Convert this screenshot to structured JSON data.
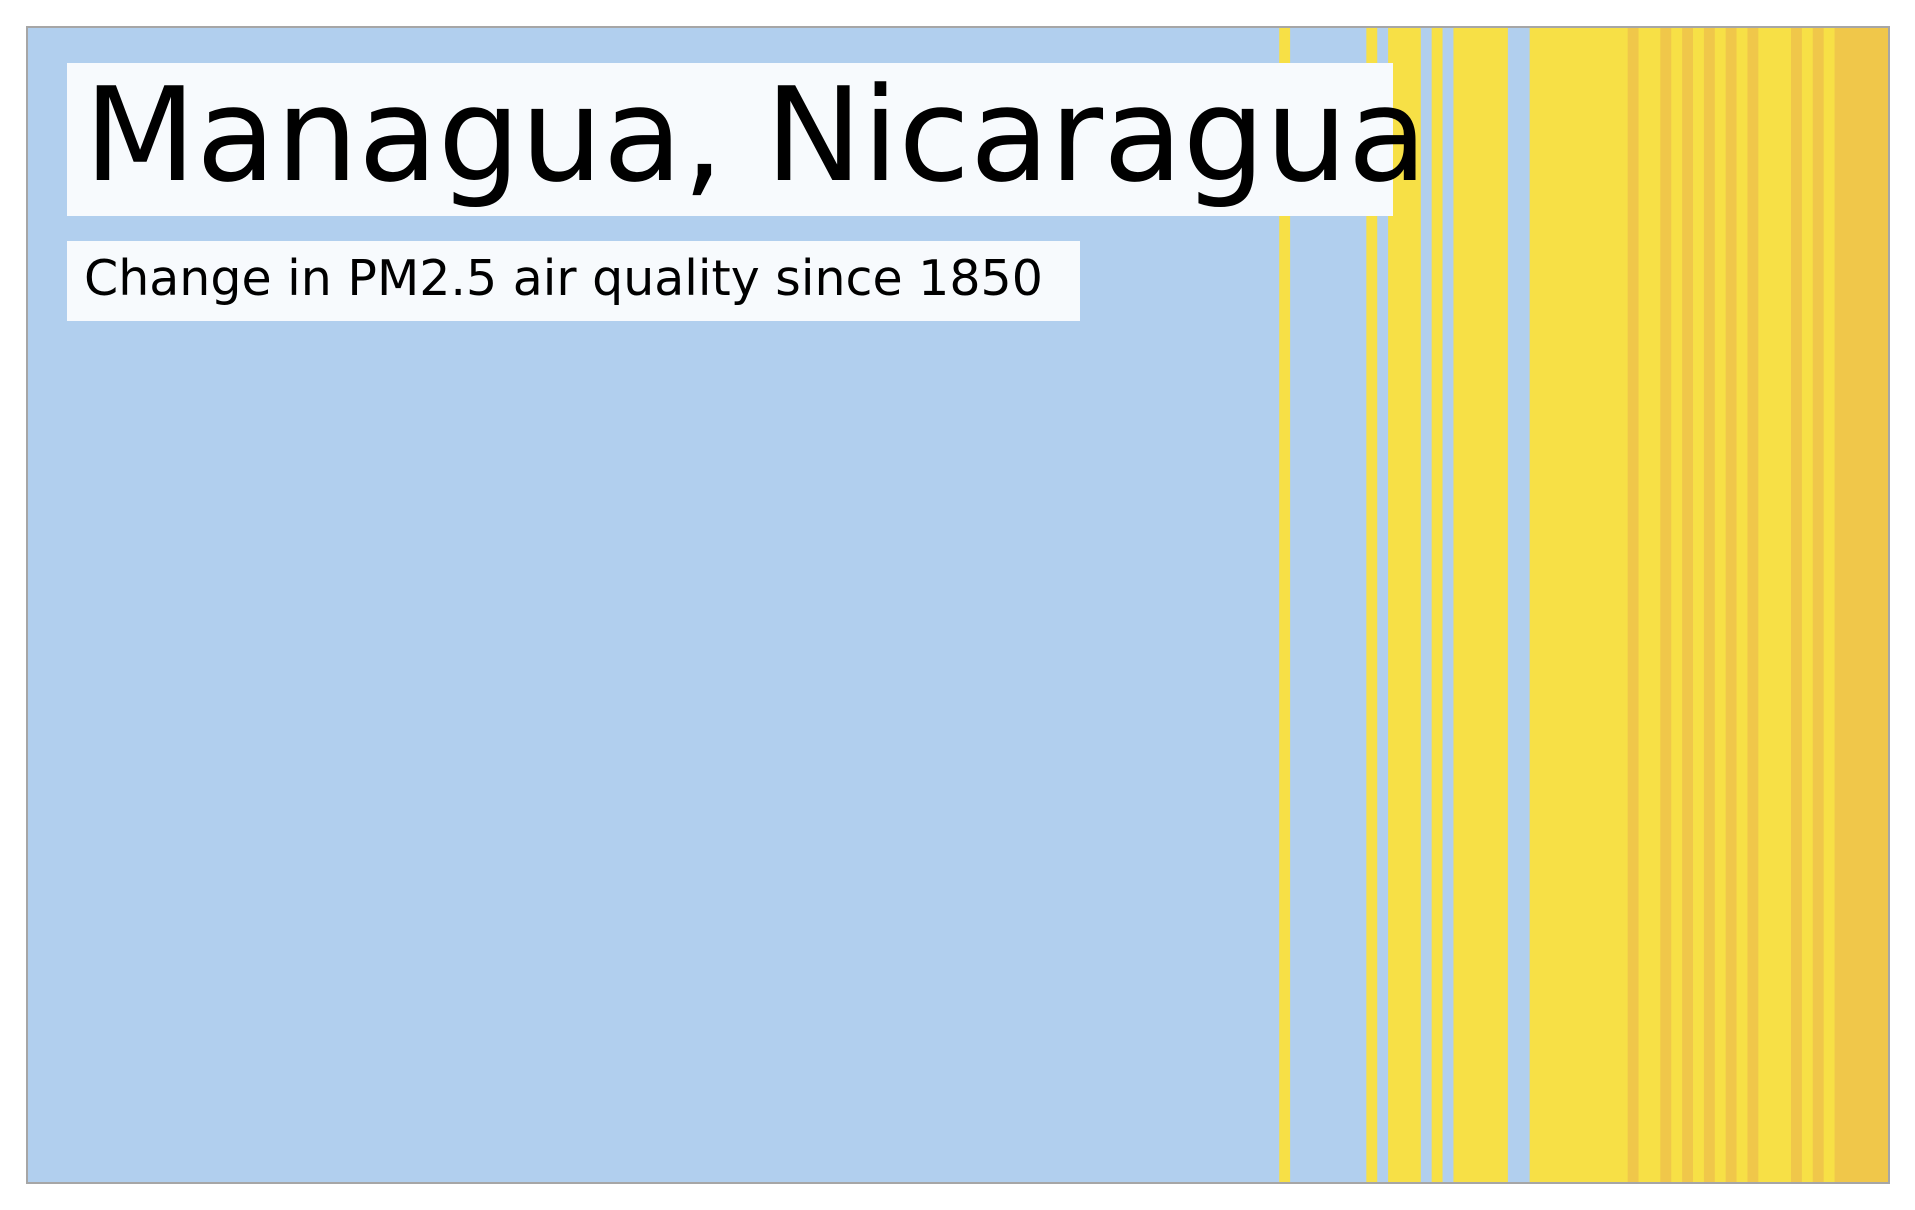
{
  "chart_data": {
    "type": "heatmap",
    "title": "Managua, Nicaragua",
    "subtitle": "Change in PM2.5 air quality since 1850",
    "x_range": [
      1850,
      2021
    ],
    "colors": {
      "low": "#b1cfee",
      "medium": "#f7e046",
      "high": "#f0c74a",
      "border": "#a6a6a6",
      "label_background": "#f7fafd"
    },
    "stripes": [
      {
        "start": 1850,
        "end": 1965,
        "level": "low"
      },
      {
        "start": 1965,
        "end": 1966,
        "level": "medium"
      },
      {
        "start": 1966,
        "end": 1973,
        "level": "low"
      },
      {
        "start": 1973,
        "end": 1974,
        "level": "medium"
      },
      {
        "start": 1974,
        "end": 1975,
        "level": "low"
      },
      {
        "start": 1975,
        "end": 1978,
        "level": "medium"
      },
      {
        "start": 1978,
        "end": 1979,
        "level": "low"
      },
      {
        "start": 1979,
        "end": 1980,
        "level": "medium"
      },
      {
        "start": 1980,
        "end": 1981,
        "level": "low"
      },
      {
        "start": 1981,
        "end": 1986,
        "level": "medium"
      },
      {
        "start": 1986,
        "end": 1988,
        "level": "low"
      },
      {
        "start": 1988,
        "end": 1997,
        "level": "medium"
      },
      {
        "start": 1997,
        "end": 1998,
        "level": "high"
      },
      {
        "start": 1998,
        "end": 2000,
        "level": "medium"
      },
      {
        "start": 2000,
        "end": 2001,
        "level": "high"
      },
      {
        "start": 2001,
        "end": 2002,
        "level": "medium"
      },
      {
        "start": 2002,
        "end": 2003,
        "level": "high"
      },
      {
        "start": 2003,
        "end": 2004,
        "level": "medium"
      },
      {
        "start": 2004,
        "end": 2005,
        "level": "high"
      },
      {
        "start": 2005,
        "end": 2006,
        "level": "medium"
      },
      {
        "start": 2006,
        "end": 2007,
        "level": "high"
      },
      {
        "start": 2007,
        "end": 2008,
        "level": "medium"
      },
      {
        "start": 2008,
        "end": 2009,
        "level": "high"
      },
      {
        "start": 2009,
        "end": 2012,
        "level": "medium"
      },
      {
        "start": 2012,
        "end": 2013,
        "level": "high"
      },
      {
        "start": 2013,
        "end": 2014,
        "level": "medium"
      },
      {
        "start": 2014,
        "end": 2015,
        "level": "high"
      },
      {
        "start": 2015,
        "end": 2016,
        "level": "medium"
      },
      {
        "start": 2016,
        "end": 2021,
        "level": "high"
      }
    ]
  }
}
